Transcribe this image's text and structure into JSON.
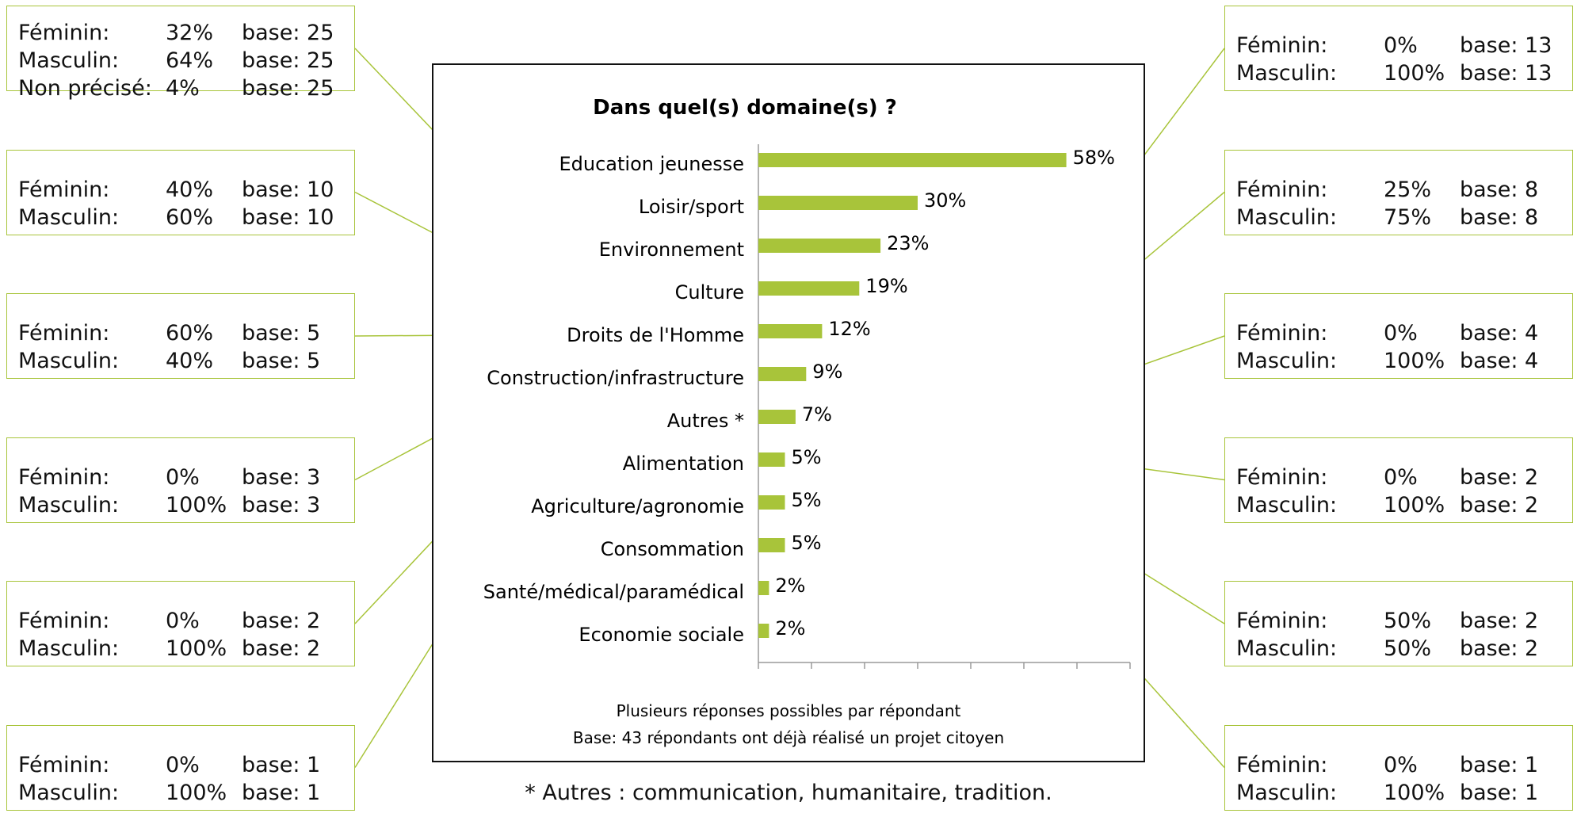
{
  "chart_data": {
    "type": "bar",
    "orientation": "horizontal",
    "title": "Dans quel(s) domaine(s) ?",
    "categories": [
      "Education jeunesse",
      "Loisir/sport",
      "Environnement",
      "Culture",
      "Droits de l'Homme",
      "Construction/infrastructure",
      "Autres *",
      "Alimentation",
      "Agriculture/agronomie",
      "Consommation",
      "Santé/médical/paramédical",
      "Economie sociale"
    ],
    "values": [
      58,
      30,
      23,
      19,
      12,
      9,
      7,
      5,
      5,
      5,
      2,
      2
    ],
    "value_labels": [
      "58%",
      "30%",
      "23%",
      "19%",
      "12%",
      "9%",
      "7%",
      "5%",
      "5%",
      "5%",
      "2%",
      "2%"
    ],
    "xlim": [
      0,
      70
    ],
    "grid": false,
    "bar_color": "#a8c43a",
    "notes": [
      "Plusieurs réponses possibles par répondant",
      "Base: 43 répondants ont déjà réalisé un projet citoyen"
    ]
  },
  "footnote": "* Autres : communication, humanitaire, tradition.",
  "callouts": [
    {
      "category": "Education jeunesse",
      "side": "left",
      "rows": [
        [
          "Féminin:",
          "32%",
          "base: 25"
        ],
        [
          "Masculin:",
          "64%",
          "base: 25"
        ],
        [
          "Non précisé:",
          "4%",
          "base: 25"
        ]
      ]
    },
    {
      "category": "Loisir/sport",
      "side": "right",
      "rows": [
        [
          "Féminin:",
          "0%",
          "base: 13"
        ],
        [
          "Masculin:",
          "100%",
          "base: 13"
        ]
      ]
    },
    {
      "category": "Environnement",
      "side": "left",
      "rows": [
        [
          "Féminin:",
          "40%",
          "base: 10"
        ],
        [
          "Masculin:",
          "60%",
          "base: 10"
        ]
      ]
    },
    {
      "category": "Culture",
      "side": "right",
      "rows": [
        [
          "Féminin:",
          "25%",
          "base: 8"
        ],
        [
          "Masculin:",
          "75%",
          "base: 8"
        ]
      ]
    },
    {
      "category": "Droits de l'Homme",
      "side": "left",
      "rows": [
        [
          "Féminin:",
          "60%",
          "base: 5"
        ],
        [
          "Masculin:",
          "40%",
          "base: 5"
        ]
      ]
    },
    {
      "category": "Construction/infrastructure",
      "side": "right",
      "rows": [
        [
          "Féminin:",
          "0%",
          "base: 4"
        ],
        [
          "Masculin:",
          "100%",
          "base: 4"
        ]
      ]
    },
    {
      "category": "Autres *",
      "side": "left",
      "rows": [
        [
          "Féminin:",
          "0%",
          "base: 3"
        ],
        [
          "Masculin:",
          "100%",
          "base: 3"
        ]
      ]
    },
    {
      "category": "Alimentation",
      "side": "right",
      "rows": [
        [
          "Féminin:",
          "0%",
          "base: 2"
        ],
        [
          "Masculin:",
          "100%",
          "base: 2"
        ]
      ]
    },
    {
      "category": "Agriculture/agronomie",
      "side": "left",
      "rows": [
        [
          "Féminin:",
          "0%",
          "base: 2"
        ],
        [
          "Masculin:",
          "100%",
          "base: 2"
        ]
      ]
    },
    {
      "category": "Consommation",
      "side": "right",
      "rows": [
        [
          "Féminin:",
          "50%",
          "base: 2"
        ],
        [
          "Masculin:",
          "50%",
          "base: 2"
        ]
      ]
    },
    {
      "category": "Santé/médical/paramédical",
      "side": "left",
      "rows": [
        [
          "Féminin:",
          "0%",
          "base: 1"
        ],
        [
          "Masculin:",
          "100%",
          "base: 1"
        ]
      ]
    },
    {
      "category": "Economie sociale",
      "side": "right",
      "rows": [
        [
          "Féminin:",
          "0%",
          "base: 1"
        ],
        [
          "Masculin:",
          "100%",
          "base: 1"
        ]
      ]
    }
  ]
}
